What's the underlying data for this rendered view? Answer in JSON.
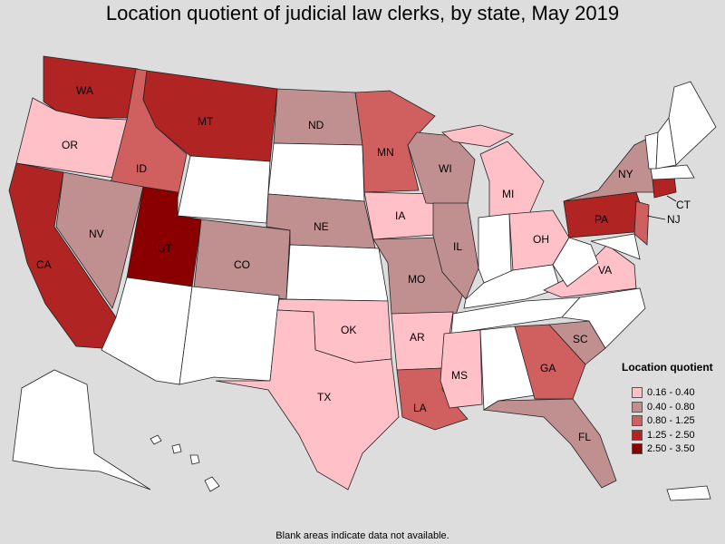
{
  "title": "Location quotient of judicial law clerks, by state, May 2019",
  "footnote": "Blank areas indicate data not available.",
  "legend": {
    "title": "Location quotient",
    "items": [
      {
        "label": "0.16 - 0.40",
        "color": "#ffc0c8"
      },
      {
        "label": "0.40 - 0.80",
        "color": "#c09090"
      },
      {
        "label": "0.80 - 1.25",
        "color": "#d06060"
      },
      {
        "label": "1.25 - 2.50",
        "color": "#b02424"
      },
      {
        "label": "2.50 - 3.50",
        "color": "#8a0000"
      }
    ]
  },
  "colors": {
    "blank": "#ffffff",
    "c1": "#ffc0c8",
    "c2": "#c09090",
    "c3": "#d06060",
    "c4": "#b02424",
    "c5": "#8a0000"
  },
  "states": [
    {
      "id": "WA",
      "label": "WA",
      "class": "c4"
    },
    {
      "id": "OR",
      "label": "OR",
      "class": "c1"
    },
    {
      "id": "CA",
      "label": "CA",
      "class": "c4"
    },
    {
      "id": "ID",
      "label": "ID",
      "class": "c3"
    },
    {
      "id": "NV",
      "label": "NV",
      "class": "c2"
    },
    {
      "id": "MT",
      "label": "MT",
      "class": "c4"
    },
    {
      "id": "WY",
      "label": "",
      "class": "blank"
    },
    {
      "id": "UT",
      "label": "UT",
      "class": "c5"
    },
    {
      "id": "CO",
      "label": "CO",
      "class": "c2"
    },
    {
      "id": "AZ",
      "label": "",
      "class": "blank"
    },
    {
      "id": "NM",
      "label": "",
      "class": "blank"
    },
    {
      "id": "ND",
      "label": "ND",
      "class": "c2"
    },
    {
      "id": "SD",
      "label": "",
      "class": "blank"
    },
    {
      "id": "NE",
      "label": "NE",
      "class": "c2"
    },
    {
      "id": "KS",
      "label": "",
      "class": "blank"
    },
    {
      "id": "OK",
      "label": "OK",
      "class": "c1"
    },
    {
      "id": "TX",
      "label": "TX",
      "class": "c1"
    },
    {
      "id": "MN",
      "label": "MN",
      "class": "c3"
    },
    {
      "id": "IA",
      "label": "IA",
      "class": "c1"
    },
    {
      "id": "MO",
      "label": "MO",
      "class": "c2"
    },
    {
      "id": "AR",
      "label": "AR",
      "class": "c1"
    },
    {
      "id": "LA",
      "label": "LA",
      "class": "c3"
    },
    {
      "id": "WI",
      "label": "WI",
      "class": "c2"
    },
    {
      "id": "IL",
      "label": "IL",
      "class": "c2"
    },
    {
      "id": "MI",
      "label": "MI",
      "class": "c1"
    },
    {
      "id": "IN",
      "label": "",
      "class": "blank"
    },
    {
      "id": "OH",
      "label": "OH",
      "class": "c1"
    },
    {
      "id": "KY",
      "label": "",
      "class": "blank"
    },
    {
      "id": "TN",
      "label": "",
      "class": "blank"
    },
    {
      "id": "MS",
      "label": "MS",
      "class": "c1"
    },
    {
      "id": "AL",
      "label": "",
      "class": "blank"
    },
    {
      "id": "GA",
      "label": "GA",
      "class": "c3"
    },
    {
      "id": "FL",
      "label": "FL",
      "class": "c2"
    },
    {
      "id": "SC",
      "label": "SC",
      "class": "c2"
    },
    {
      "id": "NC",
      "label": "",
      "class": "blank"
    },
    {
      "id": "VA",
      "label": "VA",
      "class": "c1"
    },
    {
      "id": "WV",
      "label": "",
      "class": "blank"
    },
    {
      "id": "PA",
      "label": "PA",
      "class": "c4"
    },
    {
      "id": "NY",
      "label": "NY",
      "class": "c2"
    },
    {
      "id": "NJ",
      "label": "NJ",
      "class": "c3"
    },
    {
      "id": "CT",
      "label": "CT",
      "class": "c4"
    },
    {
      "id": "ME",
      "label": "",
      "class": "blank"
    },
    {
      "id": "AK",
      "label": "",
      "class": "blank"
    },
    {
      "id": "HI",
      "label": "",
      "class": "blank"
    }
  ]
}
